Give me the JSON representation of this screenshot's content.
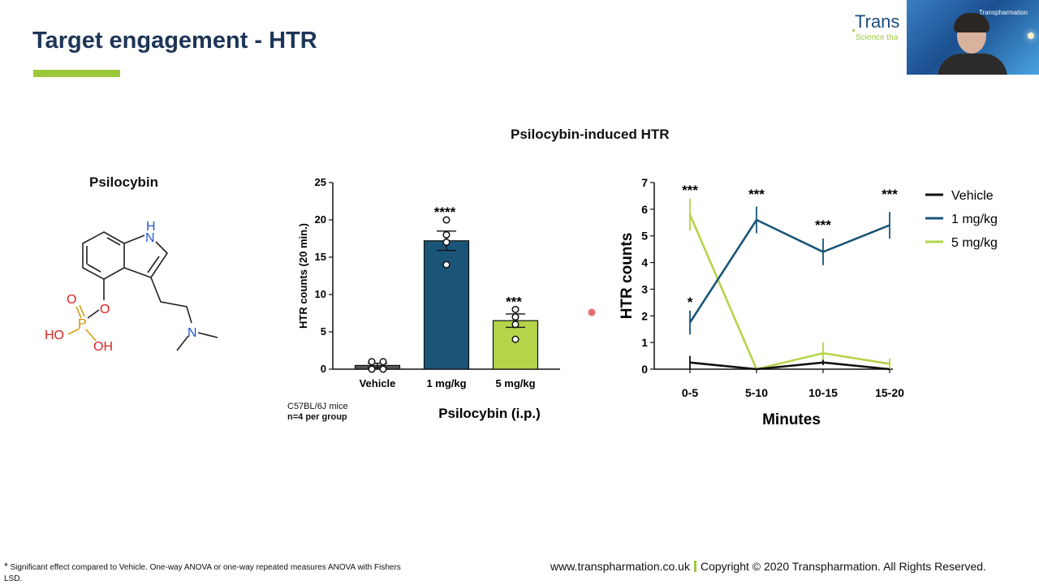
{
  "slide": {
    "title": "Target engagement - HTR",
    "logo_word": "Trans",
    "logo_tagline": "Science tha",
    "webcam_brand": "Transpharmation",
    "section_title": "Psilocybin-induced HTR",
    "molecule": {
      "name": "Psilocybin",
      "atoms": {
        "nh_n": "N",
        "nh_h": "H",
        "o_ring": "O",
        "o_double": "O",
        "p": "P",
        "ho_left": "HO",
        "oh_right": "OH",
        "n_amine": "N"
      }
    },
    "study_note": {
      "strain": "C57BL/6J mice",
      "group": "n=4 per group"
    },
    "footnote": {
      "star": "*",
      "text": "Significant effect compared to Vehicle. One-way ANOVA or one-way repeated measures ANOVA with Fishers LSD."
    },
    "footer": {
      "website": "www.transpharmation.co.uk",
      "copyright": "Copyright © 2020 Transpharmation. All Rights Reserved."
    }
  },
  "colors": {
    "title": "#1d3557",
    "accent_green": "#9cc93b",
    "navy": "#1a5577",
    "light_green": "#b5d44a",
    "vehicle": "#111111"
  },
  "chart_data": [
    {
      "type": "bar",
      "xlabel": "Psilocybin (i.p.)",
      "ylabel": "HTR counts (20 min.)",
      "ylim": [
        0,
        25
      ],
      "yticks": [
        "0",
        "5",
        "10",
        "15",
        "20",
        "25"
      ],
      "categories": [
        "Vehicle",
        "1 mg/kg",
        "5 mg/kg"
      ],
      "values": [
        0.5,
        17.2,
        6.5
      ],
      "sem": [
        0.3,
        1.3,
        0.9
      ],
      "points": [
        [
          1,
          0,
          0,
          1
        ],
        [
          20,
          18,
          17,
          14
        ],
        [
          8,
          7,
          6,
          4
        ]
      ],
      "significance": [
        "",
        "****",
        "***"
      ],
      "colors": [
        "#555555",
        "#1a5577",
        "#b5d44a"
      ]
    },
    {
      "type": "line",
      "xlabel": "Minutes",
      "ylabel": "HTR counts",
      "ylim": [
        0,
        7
      ],
      "yticks": [
        "0",
        "1",
        "2",
        "3",
        "4",
        "5",
        "6",
        "7"
      ],
      "categories": [
        "0-5",
        "5-10",
        "10-15",
        "15-20"
      ],
      "series": [
        {
          "name": "Vehicle",
          "values": [
            0.25,
            0,
            0.25,
            0
          ],
          "err": [
            0.25,
            0,
            0.1,
            0
          ],
          "color": "#111111"
        },
        {
          "name": "1 mg/kg",
          "values": [
            1.75,
            5.6,
            4.4,
            5.4
          ],
          "err": [
            0.45,
            0.5,
            0.5,
            0.5
          ],
          "color": "#1a5577"
        },
        {
          "name": "5 mg/kg",
          "values": [
            5.8,
            0,
            0.6,
            0.2
          ],
          "err": [
            0.6,
            0,
            0.4,
            0.2
          ],
          "color": "#b5d44a"
        }
      ],
      "significance_top": [
        "***",
        "***",
        "***",
        "***"
      ],
      "significance_1mg_first": "*",
      "legend_position": "right"
    }
  ]
}
